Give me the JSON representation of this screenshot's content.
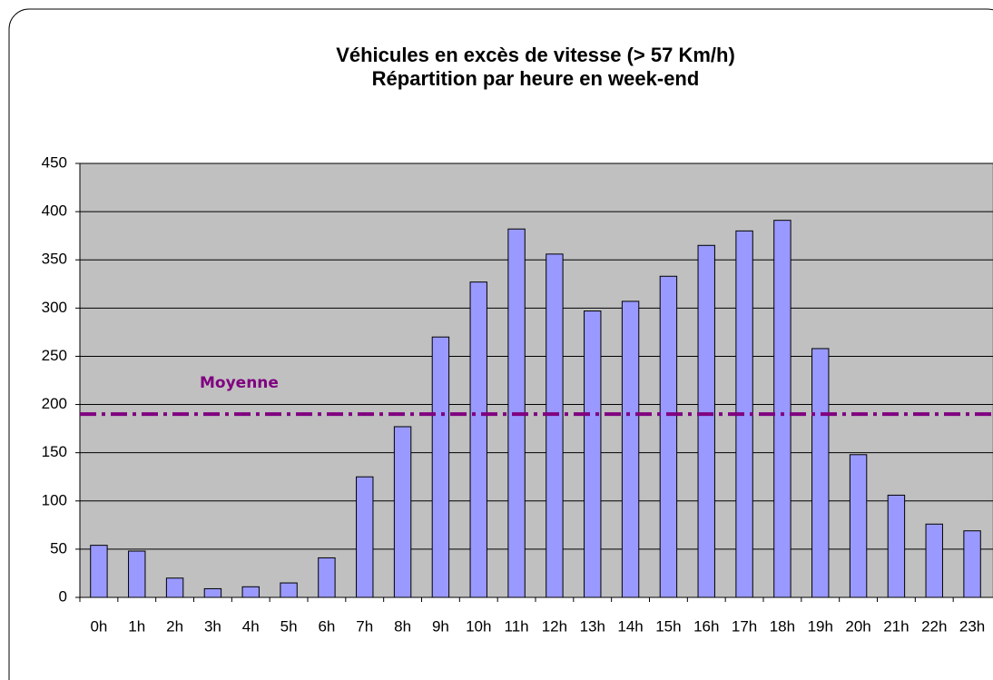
{
  "chart_data": {
    "type": "bar",
    "title": "Véhicules en excès de vitesse (> 57 Km/h)",
    "subtitle": "Répartition par heure en week-end",
    "categories": [
      "0h",
      "1h",
      "2h",
      "3h",
      "4h",
      "5h",
      "6h",
      "7h",
      "8h",
      "9h",
      "10h",
      "11h",
      "12h",
      "13h",
      "14h",
      "15h",
      "16h",
      "17h",
      "18h",
      "19h",
      "20h",
      "21h",
      "22h",
      "23h"
    ],
    "values": [
      54,
      48,
      20,
      9,
      11,
      15,
      41,
      125,
      177,
      270,
      327,
      382,
      356,
      297,
      307,
      333,
      365,
      380,
      391,
      258,
      148,
      106,
      76,
      69
    ],
    "color": "#9999ff",
    "ylim": [
      0,
      450
    ],
    "yticks": [
      0,
      50,
      100,
      150,
      200,
      250,
      300,
      350,
      400,
      450
    ],
    "grid": true,
    "average": {
      "label": "Moyenne",
      "value": 190,
      "color": "#800080"
    }
  }
}
